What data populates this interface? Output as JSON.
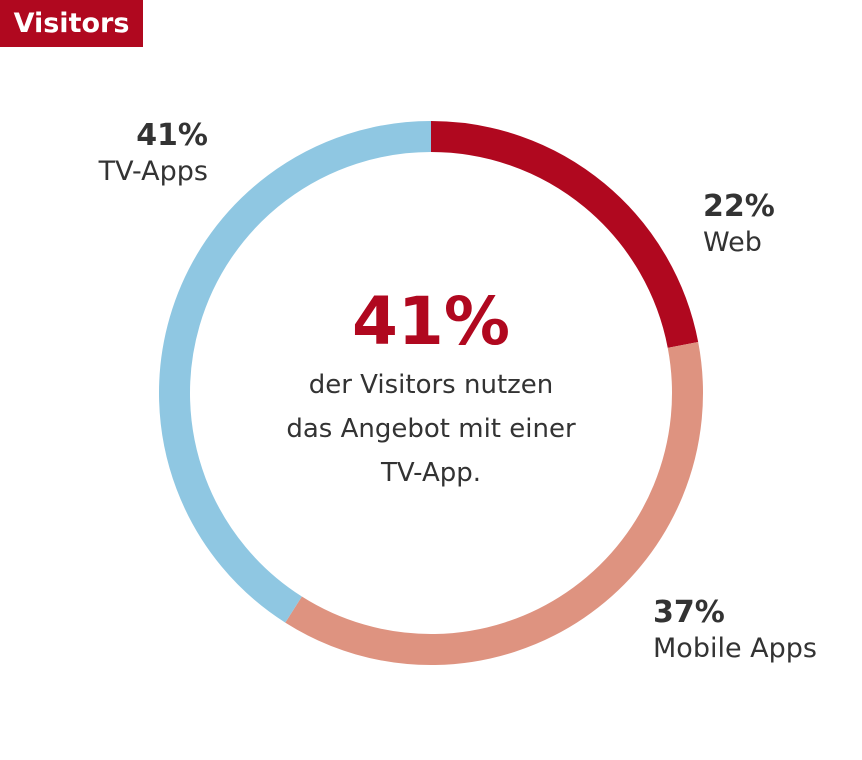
{
  "title": "Visitors",
  "chart_data": {
    "type": "pie",
    "variant": "donut",
    "title": "Visitors",
    "slices": [
      {
        "label": "Web",
        "value": 22,
        "value_label": "22%",
        "color": "#b0081f"
      },
      {
        "label": "Mobile Apps",
        "value": 37,
        "value_label": "37%",
        "color": "#de9380"
      },
      {
        "label": "TV-Apps",
        "value": 41,
        "value_label": "41%",
        "color": "#8fc7e2"
      }
    ],
    "center": {
      "value": "41%",
      "lines": [
        "der Visitors nutzen",
        "das Angebot mit einer",
        "TV-App."
      ]
    }
  }
}
